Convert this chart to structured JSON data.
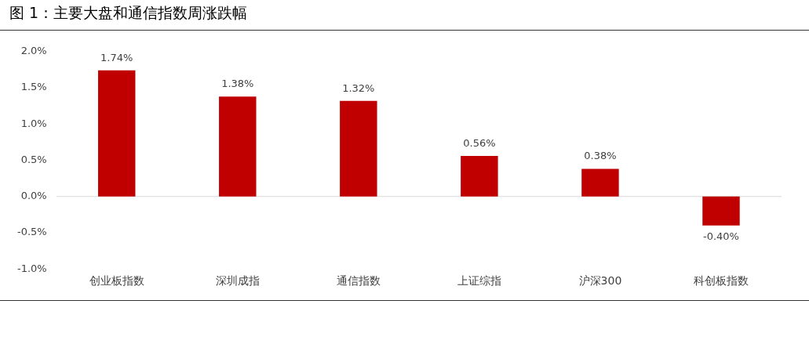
{
  "chart_data": {
    "type": "bar",
    "title": "图 1：主要大盘和通信指数周涨跌幅",
    "categories": [
      "创业板指数",
      "深圳成指",
      "通信指数",
      "上证综指",
      "沪深300",
      "科创板指数"
    ],
    "values": [
      1.74,
      1.38,
      1.32,
      0.56,
      0.38,
      -0.4
    ],
    "value_labels": [
      "1.74%",
      "1.38%",
      "1.32%",
      "0.56%",
      "0.38%",
      "-0.40%"
    ],
    "color": "#c00000",
    "ylim": [
      -1.0,
      2.0
    ],
    "yticks": [
      {
        "value": -1.0,
        "label": "-1.0%"
      },
      {
        "value": -0.5,
        "label": "-0.5%"
      },
      {
        "value": 0,
        "label": "0.0%"
      },
      {
        "value": 0.5,
        "label": "0.5%"
      },
      {
        "value": 1.0,
        "label": "1.0%"
      },
      {
        "value": 1.5,
        "label": "1.5%"
      },
      {
        "value": 2.0,
        "label": "2.0%"
      }
    ],
    "ref_lines": [
      {
        "axis": "y",
        "value": 0,
        "color": "#d9d9d9"
      }
    ],
    "grid": false,
    "legend": false
  }
}
